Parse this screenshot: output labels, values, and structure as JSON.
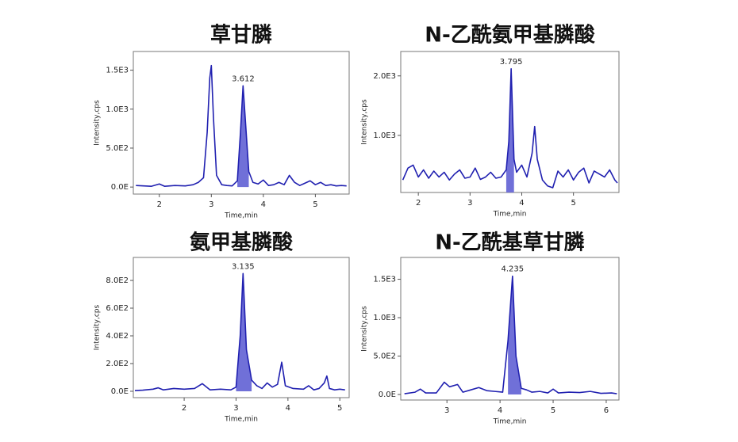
{
  "chart_data": [
    {
      "type": "line",
      "title": "草甘膦",
      "x_label": "Time,min",
      "y_label": "Intensity,cps",
      "color": "#2020b0",
      "fill_color": "#7070d8",
      "xlim": [
        1.5,
        5.65
      ],
      "ylim": [
        -90,
        1740
      ],
      "xticks": [
        2,
        3,
        4,
        5
      ],
      "yticks": [
        {
          "value": 0,
          "label": "0.0E"
        },
        {
          "value": 500,
          "label": "5.0E2"
        },
        {
          "value": 1000,
          "label": "1.0E3"
        },
        {
          "value": 1500,
          "label": "1.5E3"
        }
      ],
      "annotation": {
        "x": 3.612,
        "label": "3.612"
      },
      "fill_between": [
        3.5,
        3.72
      ],
      "x": [
        1.55,
        1.7,
        1.85,
        2.0,
        2.1,
        2.3,
        2.5,
        2.65,
        2.75,
        2.85,
        2.92,
        2.97,
        3.0,
        3.04,
        3.1,
        3.2,
        3.3,
        3.4,
        3.5,
        3.56,
        3.61,
        3.66,
        3.72,
        3.8,
        3.9,
        4.0,
        4.1,
        4.2,
        4.3,
        4.4,
        4.5,
        4.6,
        4.7,
        4.8,
        4.9,
        5.0,
        5.1,
        5.2,
        5.3,
        5.4,
        5.5,
        5.6
      ],
      "values": [
        20,
        15,
        10,
        40,
        10,
        20,
        15,
        30,
        60,
        120,
        700,
        1400,
        1560,
        900,
        150,
        30,
        20,
        15,
        80,
        700,
        1300,
        800,
        200,
        60,
        40,
        90,
        20,
        30,
        60,
        30,
        150,
        60,
        20,
        50,
        80,
        30,
        60,
        20,
        30,
        15,
        20,
        15
      ]
    },
    {
      "type": "line",
      "title": "N-乙酰氨甲基膦酸",
      "x_label": "Time,min",
      "y_label": "Intensity,cps",
      "color": "#2020b0",
      "fill_color": "#7070d8",
      "xlim": [
        1.66,
        5.88
      ],
      "ylim": [
        40,
        2410
      ],
      "xticks": [
        2,
        3,
        4,
        5
      ],
      "yticks": [
        {
          "value": 1000,
          "label": "1.0E3"
        },
        {
          "value": 2000,
          "label": "2.0E3"
        }
      ],
      "annotation": {
        "x": 3.795,
        "label": "3.795"
      },
      "fill_between": [
        3.7,
        3.85
      ],
      "x": [
        1.7,
        1.8,
        1.9,
        2.0,
        2.1,
        2.2,
        2.3,
        2.4,
        2.5,
        2.6,
        2.7,
        2.8,
        2.9,
        3.0,
        3.1,
        3.2,
        3.3,
        3.4,
        3.5,
        3.6,
        3.7,
        3.75,
        3.795,
        3.85,
        3.9,
        4.0,
        4.1,
        4.2,
        4.25,
        4.3,
        4.4,
        4.5,
        4.6,
        4.7,
        4.8,
        4.9,
        5.0,
        5.1,
        5.2,
        5.3,
        5.4,
        5.5,
        5.6,
        5.7,
        5.8,
        5.85
      ],
      "values": [
        250,
        450,
        500,
        300,
        420,
        280,
        400,
        300,
        380,
        250,
        350,
        420,
        280,
        300,
        450,
        260,
        300,
        380,
        280,
        300,
        420,
        900,
        2120,
        600,
        380,
        500,
        300,
        700,
        1150,
        600,
        250,
        150,
        120,
        400,
        300,
        420,
        250,
        380,
        450,
        200,
        400,
        350,
        300,
        420,
        250,
        200
      ]
    },
    {
      "type": "line",
      "title": "氨甲基膦酸",
      "x_label": "Time,min",
      "y_label": "Intensity,cps",
      "color": "#2020b0",
      "fill_color": "#7070d8",
      "xlim": [
        1.02,
        5.18
      ],
      "ylim": [
        -46,
        966
      ],
      "xticks": [
        2,
        3,
        4,
        5
      ],
      "yticks": [
        {
          "value": 0,
          "label": "0.0E"
        },
        {
          "value": 200,
          "label": "2.0E2"
        },
        {
          "value": 400,
          "label": "4.0E2"
        },
        {
          "value": 600,
          "label": "6.0E2"
        },
        {
          "value": 800,
          "label": "8.0E2"
        }
      ],
      "annotation": {
        "x": 3.135,
        "label": "3.135"
      },
      "fill_between": [
        3.0,
        3.35
      ],
      "x": [
        1.05,
        1.2,
        1.4,
        1.5,
        1.6,
        1.8,
        2.0,
        2.2,
        2.35,
        2.5,
        2.7,
        2.9,
        3.0,
        3.08,
        3.135,
        3.2,
        3.3,
        3.4,
        3.5,
        3.6,
        3.7,
        3.8,
        3.88,
        3.95,
        4.1,
        4.3,
        4.4,
        4.5,
        4.6,
        4.7,
        4.75,
        4.8,
        4.9,
        5.0,
        5.1
      ],
      "values": [
        5,
        8,
        15,
        25,
        10,
        20,
        15,
        20,
        55,
        10,
        15,
        10,
        30,
        400,
        850,
        300,
        80,
        40,
        20,
        60,
        30,
        50,
        210,
        40,
        20,
        15,
        40,
        10,
        20,
        60,
        110,
        20,
        10,
        15,
        10
      ]
    },
    {
      "type": "line",
      "title": "N-乙酰基草甘膦",
      "x_label": "Time,min",
      "y_label": "Intensity,cps",
      "color": "#2020b0",
      "fill_color": "#7070d8",
      "xlim": [
        2.13,
        6.24
      ],
      "ylim": [
        -72,
        1784
      ],
      "xticks": [
        3,
        4,
        5,
        6
      ],
      "yticks": [
        {
          "value": 0,
          "label": "0.0E"
        },
        {
          "value": 500,
          "label": "5.0E2"
        },
        {
          "value": 1000,
          "label": "1.0E3"
        },
        {
          "value": 1500,
          "label": "1.5E3"
        }
      ],
      "annotation": {
        "x": 4.235,
        "label": "4.235"
      },
      "fill_between": [
        4.1,
        4.4
      ],
      "x": [
        2.2,
        2.4,
        2.5,
        2.6,
        2.8,
        2.95,
        3.05,
        3.2,
        3.3,
        3.45,
        3.6,
        3.75,
        3.9,
        4.05,
        4.15,
        4.235,
        4.3,
        4.4,
        4.5,
        4.6,
        4.75,
        4.9,
        5.0,
        5.1,
        5.3,
        5.5,
        5.7,
        5.9,
        6.1,
        6.2
      ],
      "values": [
        10,
        30,
        70,
        20,
        20,
        160,
        100,
        130,
        30,
        60,
        90,
        50,
        40,
        30,
        700,
        1540,
        500,
        80,
        60,
        30,
        40,
        20,
        70,
        20,
        30,
        25,
        40,
        15,
        20,
        10
      ]
    }
  ]
}
